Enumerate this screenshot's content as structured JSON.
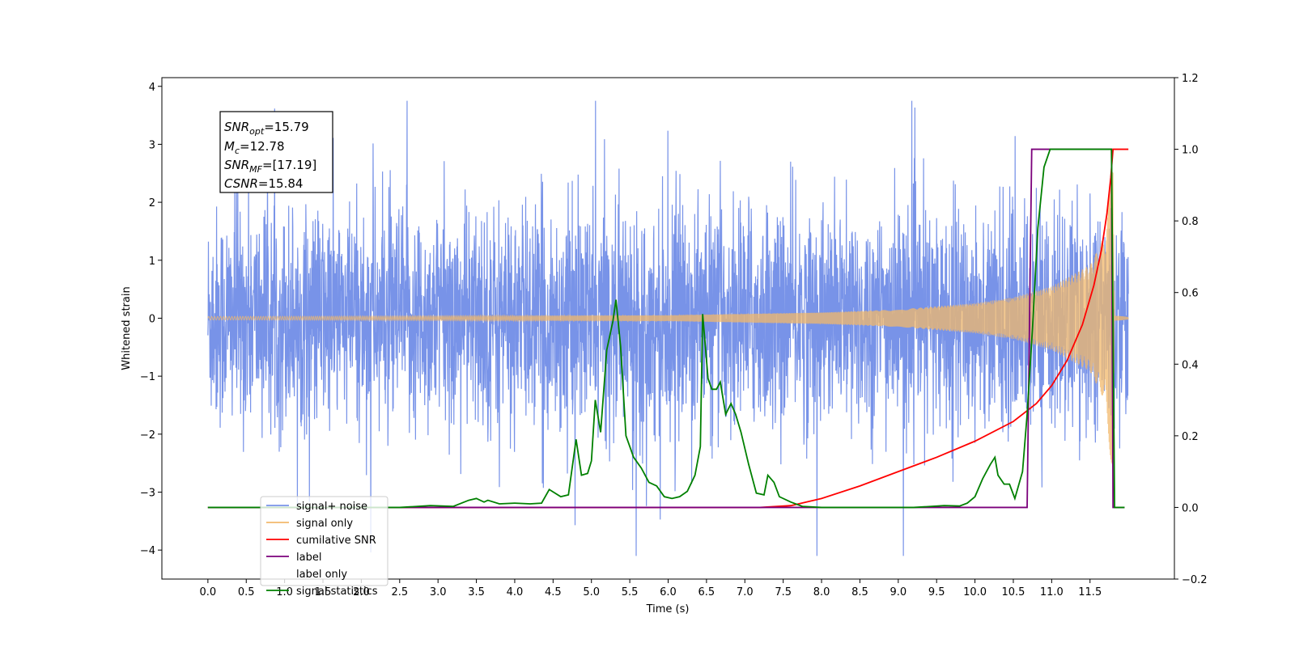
{
  "chart_data": {
    "type": "line",
    "xlabel": "Time (s)",
    "ylabel": "Whitened strain",
    "xlim": [
      -0.6,
      12.6
    ],
    "ylim": [
      -4.5,
      4.15
    ],
    "y2lim": [
      -0.2,
      1.2
    ],
    "x_ticks": [
      0.0,
      0.5,
      1.0,
      1.5,
      2.0,
      2.5,
      3.0,
      3.5,
      4.0,
      4.5,
      5.0,
      5.5,
      6.0,
      6.5,
      7.0,
      7.5,
      8.0,
      8.5,
      9.0,
      9.5,
      10.0,
      10.5,
      11.0,
      11.5
    ],
    "x_tick_labels": [
      "0.0",
      "0.5",
      "1.0",
      "1.5",
      "2.0",
      "2.5",
      "3.0",
      "3.5",
      "4.0",
      "4.5",
      "5.0",
      "5.5",
      "6.0",
      "6.5",
      "7.0",
      "7.5",
      "8.0",
      "8.5",
      "9.0",
      "9.5",
      "10.0",
      "10.5",
      "11.0",
      "11.5"
    ],
    "y_ticks": [
      -4,
      -3,
      -2,
      -1,
      0,
      1,
      2,
      3,
      4
    ],
    "y_tick_labels": [
      "−4",
      "−3",
      "−2",
      "−1",
      "0",
      "1",
      "2",
      "3",
      "4"
    ],
    "y2_ticks": [
      -0.2,
      0.0,
      0.2,
      0.4,
      0.6,
      0.8,
      1.0,
      1.2
    ],
    "y2_tick_labels": [
      "−0.2",
      "0.0",
      "0.2",
      "0.4",
      "0.6",
      "0.8",
      "1.0",
      "1.2"
    ],
    "annotation": {
      "snr_opt": "=15.79",
      "mc": "=12.78",
      "snr_mf": "=[17.19]",
      "csnr": "=15.84"
    },
    "legend_position": "lower-left",
    "series": [
      {
        "name": "signal+ noise",
        "axis": "left",
        "color": "#7893e8",
        "x_range": [
          0.0,
          12.0
        ],
        "envelope": {
          "typical_amplitude": 1.55,
          "max_peaks": [
            3.75,
            -3.4,
            3.65,
            -3.55,
            3.6,
            -4.1
          ]
        }
      },
      {
        "name": "signal only",
        "axis": "left",
        "color": "#f2b86b",
        "x_range": [
          0.0,
          12.0
        ],
        "envelope_points": [
          [
            0,
            0.03
          ],
          [
            6.0,
            0.05
          ],
          [
            8.0,
            0.1
          ],
          [
            9.0,
            0.15
          ],
          [
            10.0,
            0.26
          ],
          [
            10.5,
            0.36
          ],
          [
            11.0,
            0.55
          ],
          [
            11.5,
            0.92
          ],
          [
            11.7,
            1.45
          ],
          [
            11.8,
            2.9
          ],
          [
            11.82,
            0.05
          ],
          [
            12.0,
            0.02
          ]
        ]
      },
      {
        "name": "cumilative SNR",
        "axis": "right",
        "color": "#ff0000",
        "points": [
          [
            0.0,
            0.0
          ],
          [
            7.2,
            0.0
          ],
          [
            7.6,
            0.005
          ],
          [
            8.0,
            0.025
          ],
          [
            8.5,
            0.06
          ],
          [
            9.0,
            0.1
          ],
          [
            9.5,
            0.14
          ],
          [
            10.0,
            0.185
          ],
          [
            10.5,
            0.24
          ],
          [
            10.8,
            0.29
          ],
          [
            11.0,
            0.34
          ],
          [
            11.2,
            0.41
          ],
          [
            11.4,
            0.51
          ],
          [
            11.55,
            0.62
          ],
          [
            11.65,
            0.72
          ],
          [
            11.72,
            0.82
          ],
          [
            11.77,
            0.92
          ],
          [
            11.8,
            1.0
          ],
          [
            12.0,
            1.0
          ]
        ]
      },
      {
        "name": "label",
        "axis": "right",
        "color": "#7b007b",
        "points": [
          [
            0.0,
            0.0
          ],
          [
            10.68,
            0.0
          ],
          [
            10.74,
            1.0
          ],
          [
            11.78,
            1.0
          ],
          [
            11.8,
            0.0
          ],
          [
            11.95,
            0.0
          ]
        ]
      },
      {
        "name": "label only",
        "axis": "right",
        "color": "#d8d8d8",
        "points": []
      },
      {
        "name": "signal statistics",
        "axis": "right",
        "color": "#008000",
        "points": [
          [
            0.0,
            0.0
          ],
          [
            2.5,
            0.0
          ],
          [
            2.9,
            0.005
          ],
          [
            3.2,
            0.003
          ],
          [
            3.4,
            0.02
          ],
          [
            3.5,
            0.025
          ],
          [
            3.6,
            0.015
          ],
          [
            3.65,
            0.02
          ],
          [
            3.8,
            0.01
          ],
          [
            4.0,
            0.012
          ],
          [
            4.2,
            0.01
          ],
          [
            4.35,
            0.012
          ],
          [
            4.45,
            0.05
          ],
          [
            4.6,
            0.03
          ],
          [
            4.7,
            0.035
          ],
          [
            4.8,
            0.19
          ],
          [
            4.87,
            0.09
          ],
          [
            4.95,
            0.095
          ],
          [
            5.0,
            0.13
          ],
          [
            5.05,
            0.3
          ],
          [
            5.12,
            0.21
          ],
          [
            5.2,
            0.44
          ],
          [
            5.28,
            0.52
          ],
          [
            5.32,
            0.58
          ],
          [
            5.38,
            0.45
          ],
          [
            5.45,
            0.2
          ],
          [
            5.55,
            0.14
          ],
          [
            5.65,
            0.11
          ],
          [
            5.75,
            0.07
          ],
          [
            5.85,
            0.06
          ],
          [
            5.95,
            0.03
          ],
          [
            6.05,
            0.025
          ],
          [
            6.15,
            0.03
          ],
          [
            6.25,
            0.045
          ],
          [
            6.35,
            0.09
          ],
          [
            6.42,
            0.17
          ],
          [
            6.45,
            0.54
          ],
          [
            6.52,
            0.36
          ],
          [
            6.57,
            0.33
          ],
          [
            6.63,
            0.33
          ],
          [
            6.68,
            0.35
          ],
          [
            6.75,
            0.26
          ],
          [
            6.82,
            0.29
          ],
          [
            6.88,
            0.26
          ],
          [
            6.95,
            0.21
          ],
          [
            7.05,
            0.12
          ],
          [
            7.15,
            0.04
          ],
          [
            7.25,
            0.035
          ],
          [
            7.3,
            0.09
          ],
          [
            7.38,
            0.07
          ],
          [
            7.45,
            0.03
          ],
          [
            7.6,
            0.015
          ],
          [
            7.75,
            0.003
          ],
          [
            8.0,
            0.0
          ],
          [
            9.2,
            0.0
          ],
          [
            9.6,
            0.005
          ],
          [
            9.8,
            0.004
          ],
          [
            9.9,
            0.012
          ],
          [
            10.0,
            0.03
          ],
          [
            10.1,
            0.08
          ],
          [
            10.2,
            0.12
          ],
          [
            10.26,
            0.14
          ],
          [
            10.3,
            0.09
          ],
          [
            10.38,
            0.065
          ],
          [
            10.45,
            0.065
          ],
          [
            10.52,
            0.025
          ],
          [
            10.62,
            0.1
          ],
          [
            10.68,
            0.26
          ],
          [
            10.75,
            0.5
          ],
          [
            10.82,
            0.78
          ],
          [
            10.9,
            0.95
          ],
          [
            10.98,
            1.0
          ],
          [
            11.78,
            1.0
          ],
          [
            11.82,
            0.0
          ],
          [
            11.95,
            0.0
          ]
        ]
      }
    ]
  }
}
